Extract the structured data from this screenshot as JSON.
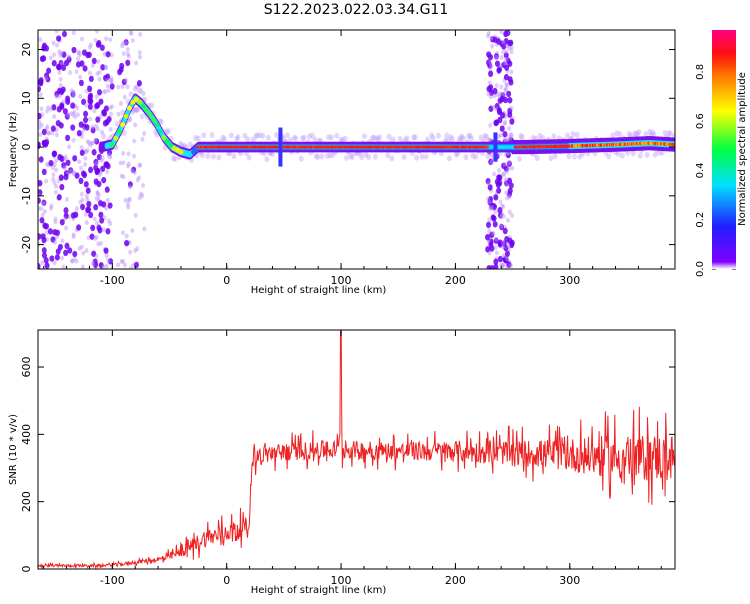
{
  "title": "S122.2023.022.03.34.G11",
  "chart_data": [
    {
      "type": "heatmap",
      "xlabel": "Height of straight line (km)",
      "ylabel": "Frequency (Hz)",
      "xlim": [
        -165,
        392
      ],
      "ylim": [
        -25,
        24
      ],
      "xticks": [
        -100,
        0,
        100,
        200,
        300
      ],
      "yticks": [
        20,
        10,
        0,
        -10,
        -20
      ],
      "colorbar": {
        "label": "Normalized spectral amplitude",
        "range": [
          0.0,
          0.97
        ],
        "ticks": [
          "0.0",
          "0.2",
          "0.4",
          "0.6",
          "0.8"
        ],
        "colormap": "rainbow (violet-blue-cyan-green-yellow-orange-red)"
      },
      "ridge": {
        "description": "dominant spectral line (frequency vs height)",
        "x": [
          -110,
          -100,
          -92,
          -85,
          -80,
          -75,
          -68,
          -62,
          -55,
          -48,
          -40,
          -32,
          -25,
          -15,
          0,
          40,
          47,
          60,
          100,
          150,
          200,
          228,
          240,
          260,
          300,
          340,
          370,
          392
        ],
        "y": [
          0,
          0.5,
          4,
          8,
          10,
          9,
          7,
          5,
          2,
          0,
          -1,
          -1.5,
          0,
          0,
          0,
          0,
          0,
          0,
          0,
          0,
          0,
          0,
          0,
          0,
          0.2,
          0.5,
          0.8,
          0.5
        ]
      },
      "noise_bands": [
        {
          "x_range": [
            -165,
            -100
          ],
          "note": "broadband noise across all frequencies"
        },
        {
          "x_range": [
            -95,
            -72
          ],
          "note": "faint noise column"
        },
        {
          "x_range": [
            228,
            250
          ],
          "note": "noise column"
        }
      ]
    },
    {
      "type": "line",
      "color": "#ee2222",
      "xlabel": "Height of straight line (km)",
      "ylabel": "SNR (10 * v/v)",
      "xlim": [
        -165,
        392
      ],
      "ylim": [
        0,
        710
      ],
      "xticks": [
        -100,
        0,
        100,
        200,
        300
      ],
      "yticks": [
        0,
        200,
        400,
        600
      ],
      "envelope": {
        "x": [
          -165,
          -110,
          -90,
          -70,
          -55,
          -40,
          -20,
          0,
          20,
          22,
          30,
          60,
          98,
          100,
          102,
          150,
          200,
          250,
          300,
          340,
          392
        ],
        "mean": [
          10,
          10,
          15,
          25,
          30,
          50,
          90,
          110,
          130,
          330,
          340,
          350,
          355,
          360,
          355,
          350,
          350,
          345,
          340,
          330,
          330
        ],
        "amp": [
          8,
          8,
          10,
          15,
          20,
          35,
          60,
          60,
          60,
          60,
          60,
          60,
          60,
          350,
          60,
          60,
          70,
          80,
          110,
          150,
          160
        ]
      },
      "peak": {
        "x": 100,
        "y": 710
      }
    }
  ]
}
